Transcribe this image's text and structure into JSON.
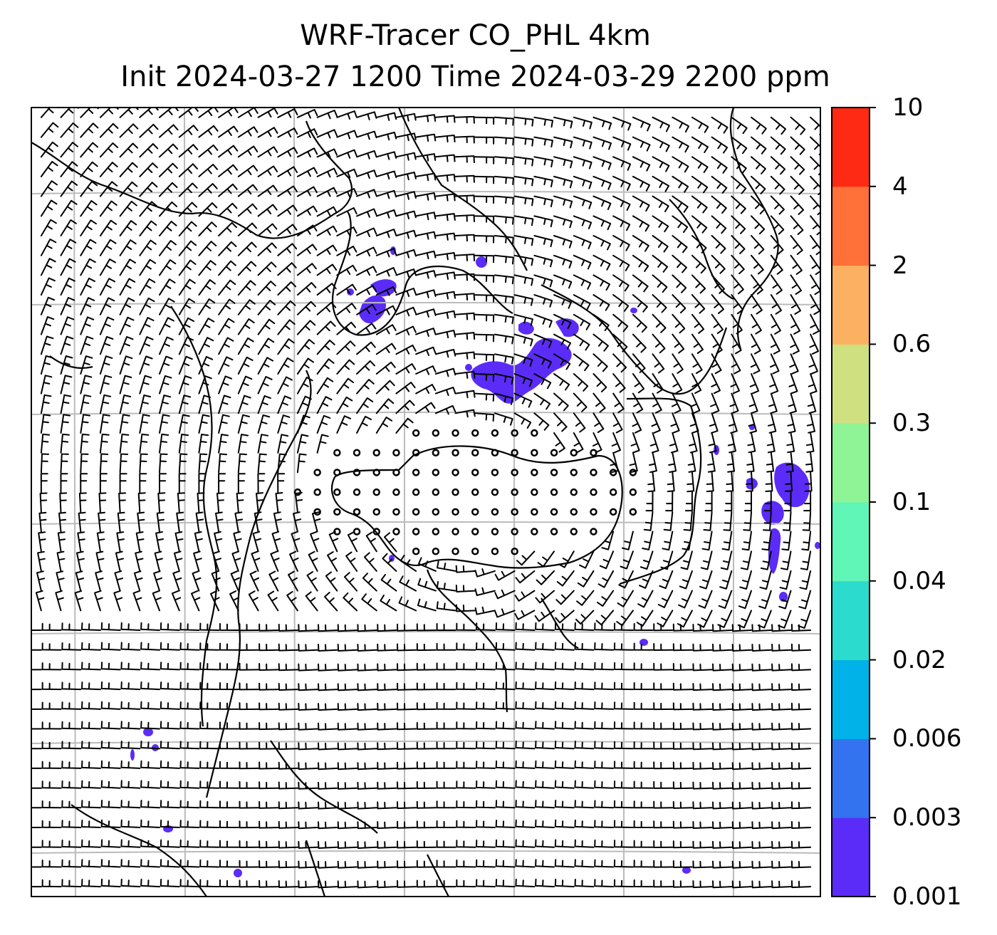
{
  "title": {
    "line1": "WRF-Tracer CO_PHL 4km",
    "line2": "Init 2024-03-27 1200 Time 2024-03-29 2200 ppm"
  },
  "colorbar": {
    "levels": [
      "0.001",
      "0.003",
      "0.006",
      "0.02",
      "0.04",
      "0.1",
      "0.3",
      "0.6",
      "2",
      "4",
      "10"
    ],
    "colors": [
      "#5b2cf7",
      "#3373ef",
      "#00b2e8",
      "#2bdbcd",
      "#5ff6b8",
      "#8ef495",
      "#cfe080",
      "#fbb161",
      "#ff7138",
      "#ff2a14"
    ]
  },
  "map": {
    "contour_color": "#5b2cf7",
    "gridline_color": "#bbbbbb",
    "coastline_color": "#000000"
  }
}
